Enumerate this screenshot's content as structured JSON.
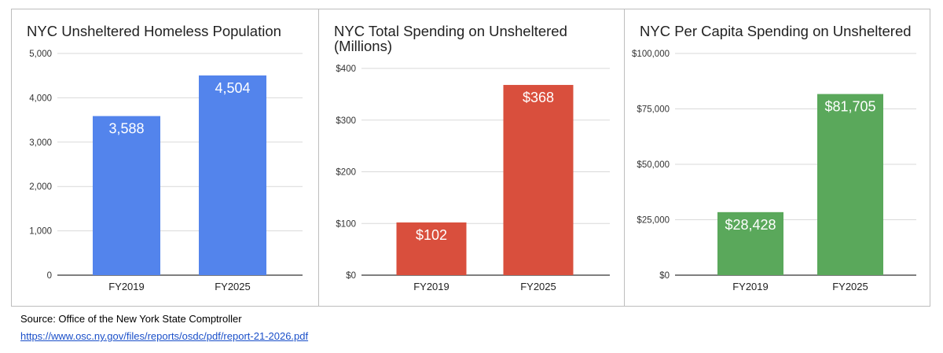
{
  "chart_data": [
    {
      "type": "bar",
      "title": "NYC Unsheltered Homeless Population",
      "categories": [
        "FY2019",
        "FY2025"
      ],
      "values": [
        3588,
        4504
      ],
      "value_labels": [
        "3,588",
        "4,504"
      ],
      "yticks": [
        0,
        1000,
        2000,
        3000,
        4000,
        5000
      ],
      "ytick_labels": [
        "0",
        "1,000",
        "2,000",
        "3,000",
        "4,000",
        "5,000"
      ],
      "ylim": [
        0,
        5000
      ],
      "xlabel": "",
      "ylabel": "",
      "color": "#5384ec",
      "grid": true
    },
    {
      "type": "bar",
      "title": "NYC Total Spending on Unsheltered (Millions)",
      "categories": [
        "FY2019",
        "FY2025"
      ],
      "values": [
        102,
        368
      ],
      "value_labels": [
        "$102",
        "$368"
      ],
      "yticks": [
        0,
        100,
        200,
        300,
        400
      ],
      "ytick_labels": [
        "$0",
        "$100",
        "$200",
        "$300",
        "$400"
      ],
      "ylim": [
        0,
        400
      ],
      "xlabel": "",
      "ylabel": "",
      "color": "#d94f3d",
      "grid": true
    },
    {
      "type": "bar",
      "title": "NYC Per Capita Spending on Unsheltered",
      "categories": [
        "FY2019",
        "FY2025"
      ],
      "values": [
        28428,
        81705
      ],
      "value_labels": [
        "$28,428",
        "$81,705"
      ],
      "yticks": [
        0,
        25000,
        50000,
        75000,
        100000
      ],
      "ytick_labels": [
        "$0",
        "$25,000",
        "$50,000",
        "$75,000",
        "$100,000"
      ],
      "ylim": [
        0,
        100000
      ],
      "xlabel": "",
      "ylabel": "",
      "color": "#5aa85b",
      "grid": true
    }
  ],
  "footer": {
    "source": "Source: Office of the New York State Comptroller",
    "link": "https://www.osc.ny.gov/files/reports/osdc/pdf/report-21-2026.pdf"
  }
}
